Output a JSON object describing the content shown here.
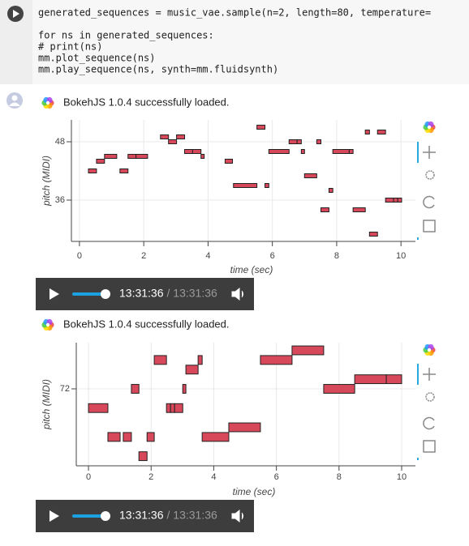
{
  "code": {
    "lines": [
      "generated_sequences = music_vae.sample(n=2, length=80, temperature=",
      "",
      "for ns in generated_sequences:",
      "  # print(ns)",
      "  mm.plot_sequence(ns)",
      "  mm.play_sequence(ns, synth=mm.fluidsynth)"
    ]
  },
  "outputs": [
    {
      "message": "BokehJS 1.0.4 successfully loaded.",
      "player": {
        "current": "13:31:36",
        "duration": "/ 13:31:36"
      }
    },
    {
      "message": "BokehJS 1.0.4 successfully loaded.",
      "player": {
        "current": "13:31:36",
        "duration": "/ 13:31:36"
      }
    }
  ],
  "chart_data": [
    {
      "type": "pianoroll",
      "x_label": "time (sec)",
      "y_label": "pitch (MIDI)",
      "color": "#d6485a",
      "grid": true,
      "xlim": [
        -0.25,
        10.45
      ],
      "xticks": [
        0,
        2,
        4,
        6,
        8,
        10
      ],
      "ylim": [
        27.5,
        52.5
      ],
      "yticks": [
        36,
        48
      ],
      "notes": {
        "start": [
          0.28,
          0.53,
          0.78,
          1.26,
          1.51,
          1.76,
          2.52,
          2.77,
          3.02,
          3.27,
          3.52,
          3.78,
          4.53,
          4.79,
          5.52,
          5.77,
          5.89,
          6.52,
          6.77,
          6.9,
          7.0,
          7.38,
          7.51,
          7.76,
          7.88,
          8.39,
          8.51,
          8.89,
          9.02,
          9.27,
          9.52,
          9.77,
          9.9
        ],
        "end": [
          0.53,
          0.78,
          1.16,
          1.51,
          1.76,
          2.12,
          2.77,
          3.02,
          3.27,
          3.52,
          3.78,
          3.88,
          4.76,
          5.52,
          5.77,
          5.89,
          6.52,
          6.77,
          6.9,
          7.0,
          7.38,
          7.51,
          7.76,
          7.88,
          8.39,
          8.51,
          8.89,
          9.02,
          9.27,
          9.52,
          9.77,
          9.9,
          10.02
        ],
        "pitch": [
          42,
          44,
          45,
          42,
          45,
          45,
          49,
          48,
          49,
          46,
          46,
          45,
          44,
          39,
          51,
          39,
          46,
          48,
          48,
          46,
          41,
          48,
          34,
          38,
          46,
          46,
          34,
          50,
          29,
          50,
          36,
          36,
          36
        ]
      }
    },
    {
      "type": "pianoroll",
      "x_label": "time (sec)",
      "y_label": "pitch (MIDI)",
      "color": "#d6485a",
      "grid": true,
      "xlim": [
        -0.39,
        10.44
      ],
      "xticks": [
        0,
        2,
        4,
        6,
        8,
        10
      ],
      "ylim": [
        64,
        76.8
      ],
      "yticks": [
        72
      ],
      "notes": {
        "start": [
          0,
          0.62,
          1.11,
          1.37,
          1.61,
          1.87,
          2.1,
          2.49,
          2.62,
          2.75,
          3.01,
          3.11,
          3.5,
          3.63,
          4.48,
          5.49,
          6.5,
          7.51,
          8.5,
          9.51
        ],
        "end": [
          0.62,
          1.01,
          1.37,
          1.61,
          1.87,
          2.1,
          2.49,
          2.62,
          2.75,
          3.01,
          3.11,
          3.5,
          3.63,
          4.48,
          5.49,
          6.5,
          7.51,
          8.5,
          9.51,
          10.0
        ],
        "pitch": [
          70,
          67,
          67,
          72,
          65,
          67,
          75,
          70,
          70,
          70,
          72,
          74,
          75,
          67,
          68,
          75,
          76,
          72,
          73,
          73
        ]
      }
    }
  ]
}
